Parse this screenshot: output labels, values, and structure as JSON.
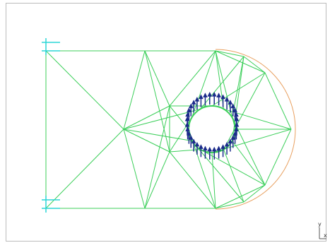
{
  "axis_triad": {
    "y": "y",
    "x": "x"
  }
}
